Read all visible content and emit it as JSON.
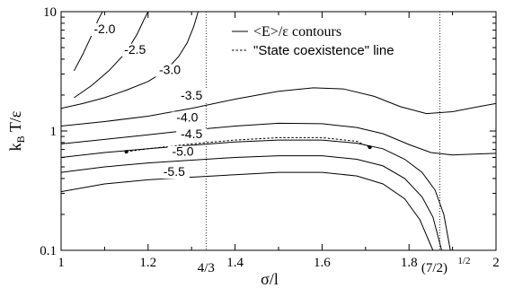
{
  "chart_data": {
    "type": "line",
    "xlabel": "σ/l",
    "ylabel": "k_B T/ε",
    "xlim": [
      1,
      2
    ],
    "ylim": [
      0.1,
      10
    ],
    "yscale": "log",
    "x_ticks": [
      {
        "value": 1,
        "label": "1"
      },
      {
        "value": 1.2,
        "label": "1.2"
      },
      {
        "value": 1.4,
        "label": "1.4"
      },
      {
        "value": 1.6,
        "label": "1.6"
      },
      {
        "value": 1.8,
        "label": "1.8"
      },
      {
        "value": 2,
        "label": "2"
      }
    ],
    "y_ticks": [
      {
        "value": 0.1,
        "label": "0.1"
      },
      {
        "value": 1,
        "label": "1"
      },
      {
        "value": 10,
        "label": "10"
      }
    ],
    "reference_lines": [
      {
        "x": 1.3333,
        "label": "4/3"
      },
      {
        "x": 1.8708,
        "label": "(7/2)",
        "superscript": "1/2"
      }
    ],
    "legend": {
      "placement": "top-right",
      "entries": [
        {
          "label": "<E>/ε contours",
          "style": "solid"
        },
        {
          "label": "\"State coexistence\" line",
          "style": "dashed"
        }
      ]
    },
    "grid": false,
    "series": [
      {
        "label": "-2.0",
        "values": [
          [
            1.03,
            3.2
          ],
          [
            1.05,
            4.4
          ],
          [
            1.07,
            6.3
          ],
          [
            1.085,
            8.5
          ],
          [
            1.095,
            10
          ]
        ]
      },
      {
        "label": "-2.5",
        "values": [
          [
            1.03,
            1.9
          ],
          [
            1.07,
            2.4
          ],
          [
            1.11,
            3.2
          ],
          [
            1.15,
            4.6
          ],
          [
            1.175,
            6.5
          ],
          [
            1.19,
            8.5
          ],
          [
            1.2,
            10
          ]
        ]
      },
      {
        "label": "-3.0",
        "values": [
          [
            1,
            1.55
          ],
          [
            1.05,
            1.7
          ],
          [
            1.1,
            1.9
          ],
          [
            1.15,
            2.2
          ],
          [
            1.2,
            2.6
          ],
          [
            1.24,
            3.2
          ],
          [
            1.27,
            4.2
          ],
          [
            1.29,
            5.5
          ],
          [
            1.305,
            7.5
          ],
          [
            1.315,
            10
          ]
        ]
      },
      {
        "label": "-3.5",
        "values": [
          [
            1,
            1.1
          ],
          [
            1.1,
            1.2
          ],
          [
            1.2,
            1.33
          ],
          [
            1.3,
            1.55
          ],
          [
            1.4,
            1.85
          ],
          [
            1.5,
            2.15
          ],
          [
            1.58,
            2.3
          ],
          [
            1.65,
            2.25
          ],
          [
            1.72,
            1.95
          ],
          [
            1.78,
            1.6
          ],
          [
            1.84,
            1.4
          ],
          [
            1.9,
            1.45
          ],
          [
            1.96,
            1.6
          ],
          [
            2,
            1.7
          ]
        ]
      },
      {
        "label": "-4.0",
        "values": [
          [
            1,
            0.78
          ],
          [
            1.1,
            0.85
          ],
          [
            1.2,
            0.93
          ],
          [
            1.3,
            1.02
          ],
          [
            1.4,
            1.1
          ],
          [
            1.5,
            1.16
          ],
          [
            1.6,
            1.15
          ],
          [
            1.68,
            1.07
          ],
          [
            1.74,
            0.95
          ],
          [
            1.8,
            0.77
          ],
          [
            1.85,
            0.66
          ],
          [
            1.9,
            0.63
          ],
          [
            1.95,
            0.64
          ],
          [
            2,
            0.65
          ]
        ]
      },
      {
        "label": "-4.5",
        "values": [
          [
            1,
            0.6
          ],
          [
            1.1,
            0.66
          ],
          [
            1.2,
            0.71
          ],
          [
            1.3,
            0.76
          ],
          [
            1.4,
            0.81
          ],
          [
            1.5,
            0.84
          ],
          [
            1.6,
            0.84
          ],
          [
            1.68,
            0.79
          ],
          [
            1.74,
            0.71
          ],
          [
            1.79,
            0.58
          ],
          [
            1.83,
            0.45
          ],
          [
            1.86,
            0.32
          ],
          [
            1.88,
            0.2
          ],
          [
            1.895,
            0.1
          ]
        ]
      },
      {
        "label": "-5.0",
        "values": [
          [
            1,
            0.45
          ],
          [
            1.1,
            0.5
          ],
          [
            1.2,
            0.54
          ],
          [
            1.3,
            0.57
          ],
          [
            1.4,
            0.6
          ],
          [
            1.5,
            0.62
          ],
          [
            1.6,
            0.62
          ],
          [
            1.68,
            0.58
          ],
          [
            1.74,
            0.51
          ],
          [
            1.79,
            0.4
          ],
          [
            1.83,
            0.28
          ],
          [
            1.855,
            0.19
          ],
          [
            1.875,
            0.1
          ]
        ]
      },
      {
        "label": "-5.5",
        "values": [
          [
            1,
            0.31
          ],
          [
            1.1,
            0.36
          ],
          [
            1.2,
            0.39
          ],
          [
            1.3,
            0.41
          ],
          [
            1.4,
            0.43
          ],
          [
            1.5,
            0.45
          ],
          [
            1.6,
            0.45
          ],
          [
            1.68,
            0.42
          ],
          [
            1.74,
            0.36
          ],
          [
            1.79,
            0.27
          ],
          [
            1.825,
            0.18
          ],
          [
            1.85,
            0.11
          ],
          [
            1.855,
            0.1
          ]
        ]
      }
    ],
    "coexistence_line": [
      [
        1.15,
        0.67
      ],
      [
        1.2,
        0.71
      ],
      [
        1.3,
        0.78
      ],
      [
        1.4,
        0.84
      ],
      [
        1.5,
        0.88
      ],
      [
        1.6,
        0.88
      ],
      [
        1.68,
        0.82
      ],
      [
        1.71,
        0.73
      ]
    ],
    "coexistence_endpoints": [
      [
        1.15,
        0.67
      ],
      [
        1.71,
        0.73
      ]
    ],
    "contour_label_positions": [
      {
        "text": "-2.0",
        "x": 1.1,
        "y": 6.6
      },
      {
        "text": "-2.5",
        "x": 1.17,
        "y": 4.45
      },
      {
        "text": "-3.0",
        "x": 1.25,
        "y": 3.0
      },
      {
        "text": "-3.5",
        "x": 1.3,
        "y": 1.83
      },
      {
        "text": "-4.0",
        "x": 1.29,
        "y": 1.2
      },
      {
        "text": "-4.5",
        "x": 1.3,
        "y": 0.87
      },
      {
        "text": "-5.0",
        "x": 1.28,
        "y": 0.62
      },
      {
        "text": "-5.5",
        "x": 1.26,
        "y": 0.42
      }
    ]
  }
}
